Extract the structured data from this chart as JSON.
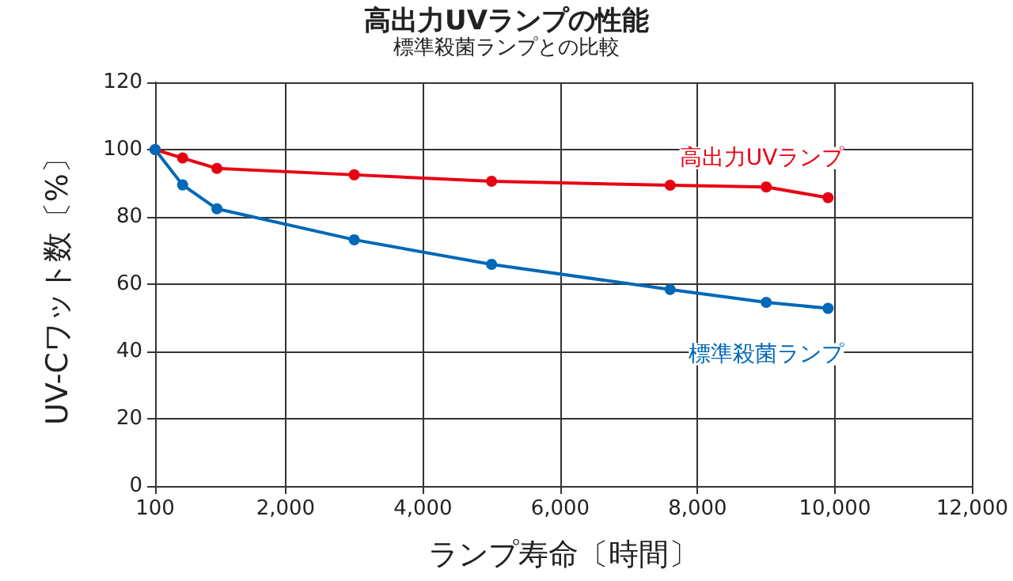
{
  "chart_data": {
    "type": "line",
    "title": "高出力UVランプの性能",
    "subtitle": "標準殺菌ランプとの比較",
    "xlabel": "ランプ寿命〔時間〕",
    "ylabel": "UV-Cワット数〔%〕",
    "xlim": [
      100,
      12000
    ],
    "xticks": [
      100,
      {
        "value": 2000,
        "label": "2,000"
      },
      {
        "value": 4000,
        "label": "4,000"
      },
      {
        "value": 6000,
        "label": "6,000"
      },
      {
        "value": 8000,
        "label": "8,000"
      },
      {
        "value": 10000,
        "label": "10,000"
      },
      {
        "value": 12000,
        "label": "12,000"
      }
    ],
    "ylim": [
      0,
      120
    ],
    "yticks": [
      0,
      20,
      40,
      60,
      80,
      100,
      120
    ],
    "grid": true,
    "legend": false,
    "marker": "circle",
    "series": [
      {
        "name": "高出力UVランプ",
        "color": "#e60012",
        "x": [
          100,
          500,
          1000,
          3000,
          5000,
          7600,
          9000,
          9900
        ],
        "values": [
          100,
          97.5,
          94.4,
          92.5,
          90.6,
          89.4,
          88.9,
          85.7
        ]
      },
      {
        "name": "標準殺菌ランプ",
        "color": "#0068b7",
        "x": [
          100,
          500,
          1000,
          3000,
          5000,
          7600,
          9000,
          9900
        ],
        "values": [
          100,
          89.5,
          82.4,
          73.2,
          65.9,
          58.4,
          54.6,
          52.8
        ]
      }
    ]
  }
}
